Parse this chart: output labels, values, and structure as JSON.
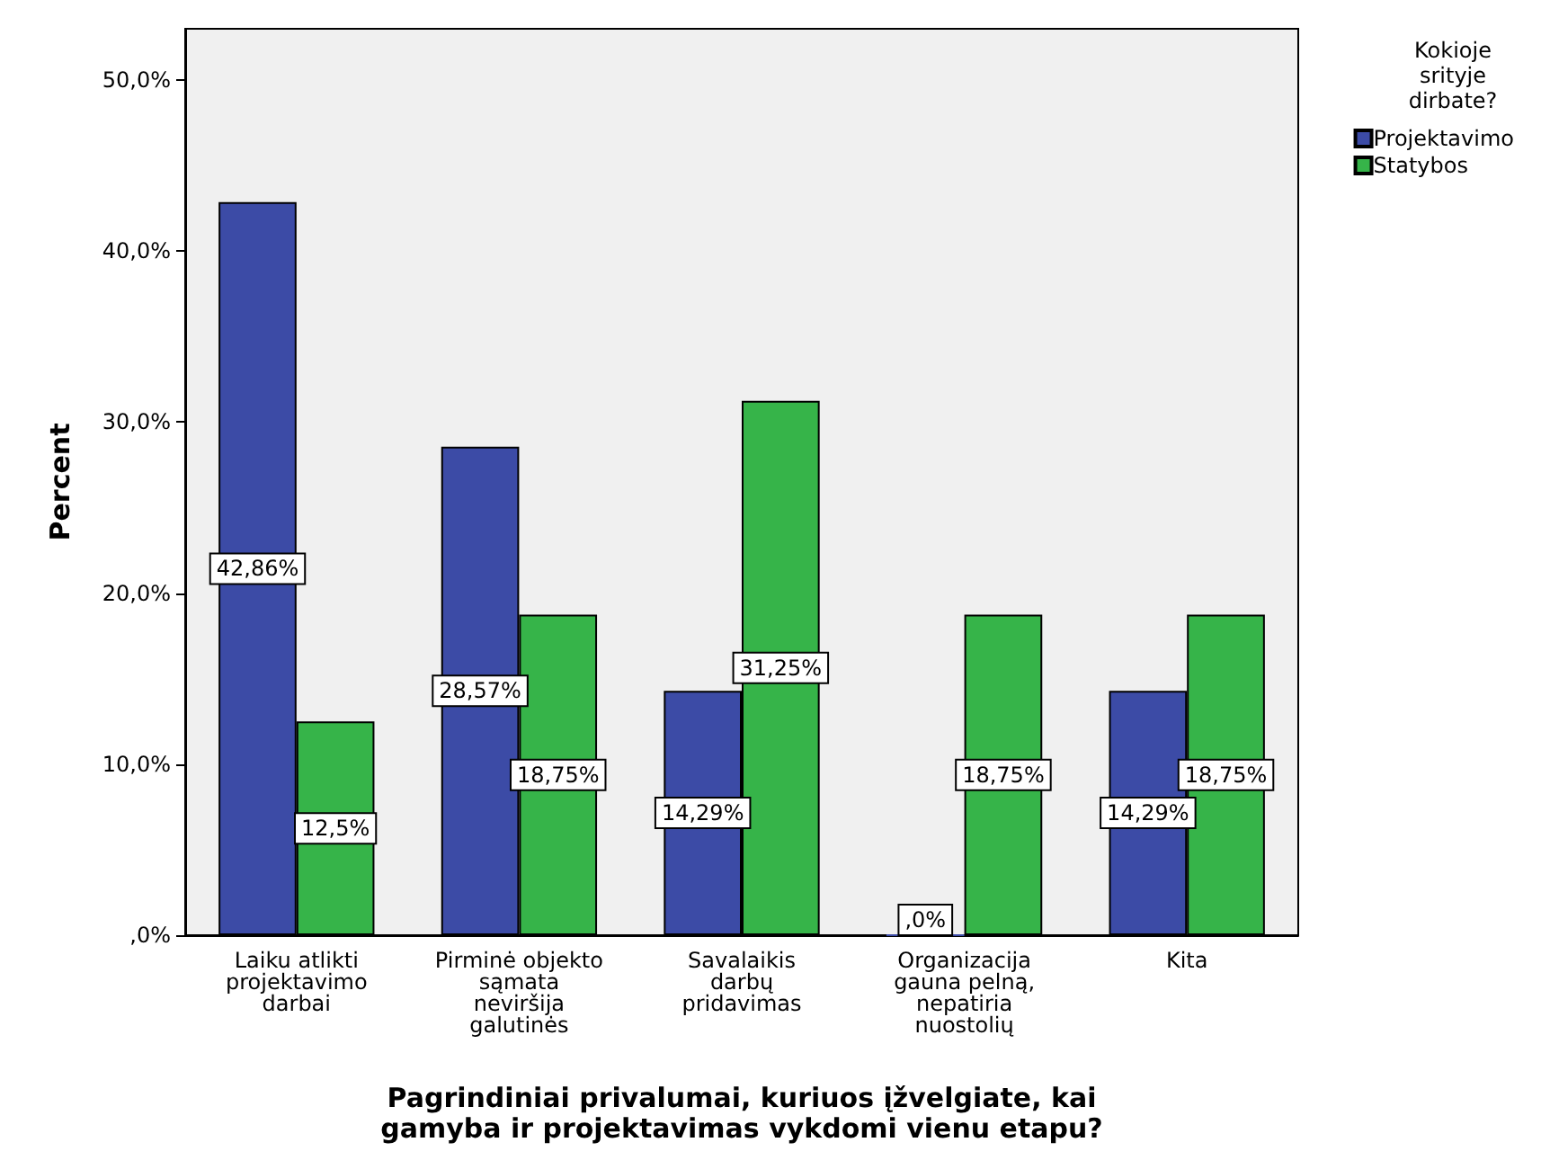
{
  "chart_data": {
    "type": "bar",
    "xlabel": "Pagrindiniai privalumai, kuriuos įžvelgiate, kai\ngamyba ir projektavimas vykdomi vienu etapu?",
    "ylabel": "Percent",
    "legend_title": "Kokioje\nsrityje\ndirbate?",
    "legend": "top right",
    "grid": false,
    "categories": [
      "Laiku atlikti\nprojektavimo\ndarbai",
      "Pirminė objekto\nsąmata\nneviršija\ngalutinės",
      "Savalaikis\ndarbų\npridavimas",
      "Organizacija\ngauna pelną,\nnepatiria\nnuostolių",
      "Kita"
    ],
    "series": [
      {
        "name": "Projektavimo",
        "color": "#3c4ba6",
        "values": [
          42.86,
          28.57,
          14.29,
          0,
          14.29
        ],
        "value_labels": [
          "42,86%",
          "28,57%",
          "14,29%",
          ",0%",
          "14,29%"
        ]
      },
      {
        "name": "Statybos",
        "color": "#36b449",
        "values": [
          12.5,
          18.75,
          31.25,
          18.75,
          18.75
        ],
        "value_labels": [
          "12,5%",
          "18,75%",
          "31,25%",
          "18,75%",
          "18,75%"
        ]
      }
    ],
    "ylim": [
      0,
      53
    ],
    "yticks": [
      {
        "value": 0,
        "label": ",0%"
      },
      {
        "value": 10,
        "label": "10,0%"
      },
      {
        "value": 20,
        "label": "20,0%"
      },
      {
        "value": 30,
        "label": "30,0%"
      },
      {
        "value": 40,
        "label": "40,0%"
      },
      {
        "value": 50,
        "label": "50,0%"
      }
    ]
  }
}
